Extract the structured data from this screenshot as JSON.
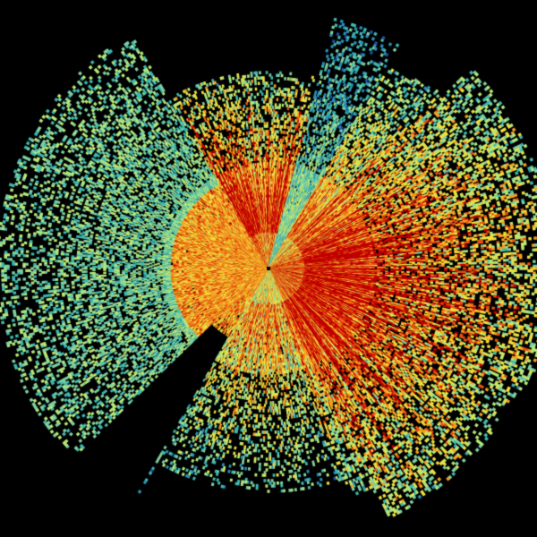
{
  "image": {
    "kind": "radar-reflectivity-sweep",
    "background": "#000000",
    "palette": [
      "#1f4fa0",
      "#2a8fb8",
      "#3fb8b0",
      "#7fd0a0",
      "#b8e878",
      "#f0e040",
      "#f5a020",
      "#e85010",
      "#c00000"
    ],
    "center_marker_color": "#000000"
  }
}
